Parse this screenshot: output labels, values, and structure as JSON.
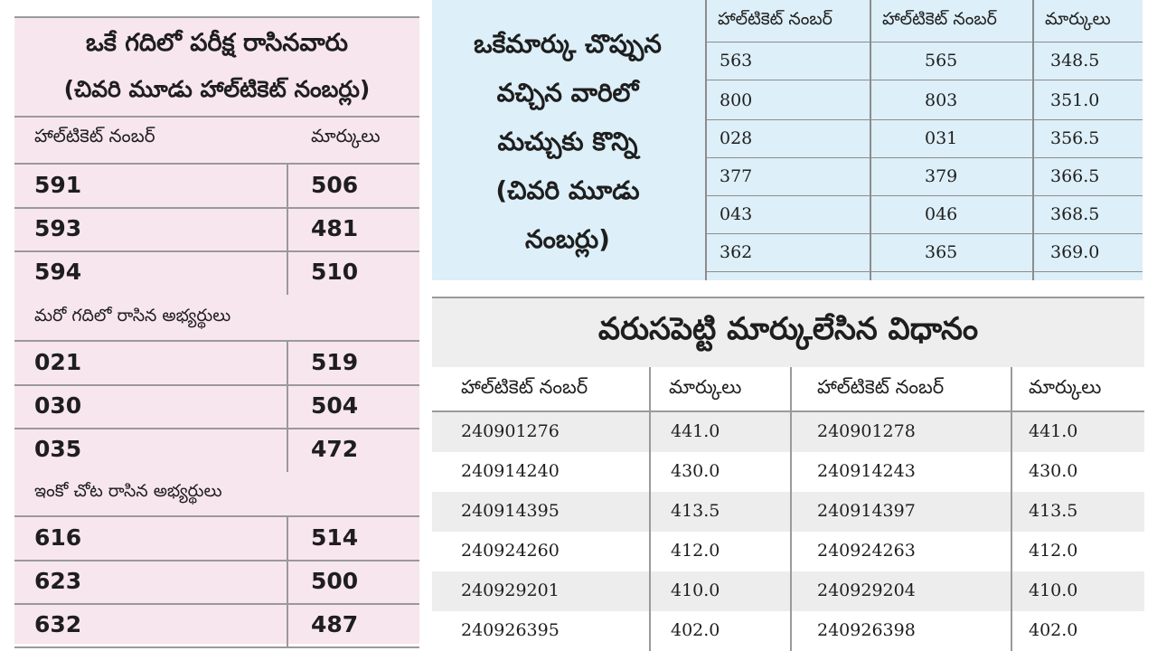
{
  "left_table": {
    "title_line1": "ఒకే గదిలో పరీక్ష రాసినవారు",
    "title_line2": "(చివరి మూడు హాల్‌టికెట్ నంబర్లు)",
    "header_ticket": "హాల్‌టికెట్ నంబర్",
    "header_marks": "మార్కులు",
    "groups": [
      {
        "label": "",
        "rows": [
          {
            "ticket": "591",
            "marks": "506"
          },
          {
            "ticket": "593",
            "marks": "481"
          },
          {
            "ticket": "594",
            "marks": "510"
          }
        ]
      },
      {
        "label": "మరో గదిలో రాసిన అభ్యర్థులు",
        "rows": [
          {
            "ticket": "021",
            "marks": "519"
          },
          {
            "ticket": "030",
            "marks": "504"
          },
          {
            "ticket": "035",
            "marks": "472"
          }
        ]
      },
      {
        "label": "ఇంకో చోట రాసిన అభ్యర్థులు",
        "rows": [
          {
            "ticket": "616",
            "marks": "514"
          },
          {
            "ticket": "623",
            "marks": "500"
          },
          {
            "ticket": "632",
            "marks": "487"
          }
        ]
      }
    ]
  },
  "top_right_table": {
    "caption_lines": [
      "ఒకేమార్కు చొప్పున",
      "వచ్చిన వారిలో",
      "మచ్చుకు కొన్ని",
      "(చివరి మూడు",
      "నంబర్లు)"
    ],
    "headers": [
      "హాల్‌టికెట్ నంబర్",
      "హాల్‌టికెట్ నంబర్",
      "మార్కులు"
    ],
    "rows": [
      [
        "563",
        "565",
        "348.5"
      ],
      [
        "800",
        "803",
        "351.0"
      ],
      [
        "028",
        "031",
        "356.5"
      ],
      [
        "377",
        "379",
        "366.5"
      ],
      [
        "043",
        "046",
        "368.5"
      ],
      [
        "362",
        "365",
        "369.0"
      ]
    ]
  },
  "bottom_table": {
    "title": "వరుసపెట్టి మార్కులేసిన విధానం",
    "headers": [
      "హాల్‌టికెట్ నంబర్",
      "మార్కులు",
      "హాల్‌టికెట్ నంబర్",
      "మార్కులు"
    ],
    "rows": [
      [
        "240901276",
        "441.0",
        "240901278",
        "441.0"
      ],
      [
        "240914240",
        "430.0",
        "240914243",
        "430.0"
      ],
      [
        "240914395",
        "413.5",
        "240914397",
        "413.5"
      ],
      [
        "240924260",
        "412.0",
        "240924263",
        "412.0"
      ],
      [
        "240929201",
        "410.0",
        "240929204",
        "410.0"
      ],
      [
        "240926395",
        "402.0",
        "240926398",
        "402.0"
      ]
    ]
  }
}
